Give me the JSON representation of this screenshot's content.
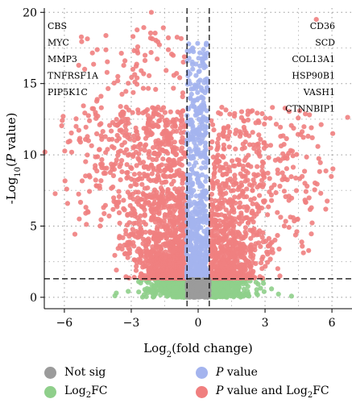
{
  "chart_data": {
    "type": "scatter",
    "title": "",
    "xlabel": "Log2(fold change)",
    "ylabel": "-Log10(P value)",
    "xlim": [
      -6.9,
      6.9
    ],
    "ylim": [
      -0.8,
      20.3
    ],
    "xticks": [
      -6,
      -3,
      0,
      3,
      6
    ],
    "yticks": [
      0,
      5,
      10,
      15,
      20
    ],
    "xtick_labels": [
      "−6",
      "−3",
      "0",
      "3",
      "6"
    ],
    "ytick_labels": [
      "0",
      "5",
      "10",
      "15",
      "20"
    ],
    "grid": true,
    "thresholds": {
      "fc_lines": [
        -0.5,
        0.5
      ],
      "p_line": 1.3
    },
    "colors": {
      "not_sig": "#9b9b9b",
      "log2fc": "#8fcf8b",
      "p_value": "#a4b4ee",
      "p_and_fc": "#f07f7f"
    },
    "legend": {
      "position": "bottom",
      "items": [
        {
          "key": "not_sig",
          "label": "Not sig"
        },
        {
          "key": "p_value",
          "label_italic": "P",
          "label_rest": " value"
        },
        {
          "key": "log2fc",
          "label_main": "Log",
          "label_sub": "2",
          "label_rest": "FC"
        },
        {
          "key": "p_and_fc",
          "label_italic": "P",
          "label_rest": " value and Log",
          "label_sub": "2",
          "label_tail": "FC"
        }
      ]
    },
    "gene_labels_left": [
      "CBS",
      "MYC",
      "MMP3",
      "TNFRSF1A",
      "PIP5K1C"
    ],
    "gene_labels_right": [
      "CD36",
      "SCD",
      "COL13A1",
      "HSP90B1",
      "VASH1",
      "CTNNBIP1"
    ],
    "highlighted_points": [
      {
        "x": -2.1,
        "y": 20.0
      },
      {
        "x": 5.3,
        "y": 19.5
      }
    ],
    "series": [
      {
        "key": "not_sig",
        "n": 600,
        "description_range": {
          "x": [
            -0.5,
            0.5
          ],
          "y": [
            0,
            1.3
          ]
        }
      },
      {
        "key": "log2fc",
        "n": 900,
        "description_range": {
          "x": [
            -3,
            3
          ],
          "y": [
            0,
            1.3
          ]
        }
      },
      {
        "key": "p_value",
        "n": 700,
        "description_range": {
          "x": [
            -0.5,
            0.5
          ],
          "y": [
            1.3,
            18
          ]
        }
      },
      {
        "key": "p_and_fc",
        "n": 2600,
        "description_range": {
          "x": [
            -6,
            6
          ],
          "y": [
            1.3,
            20
          ]
        }
      }
    ]
  }
}
